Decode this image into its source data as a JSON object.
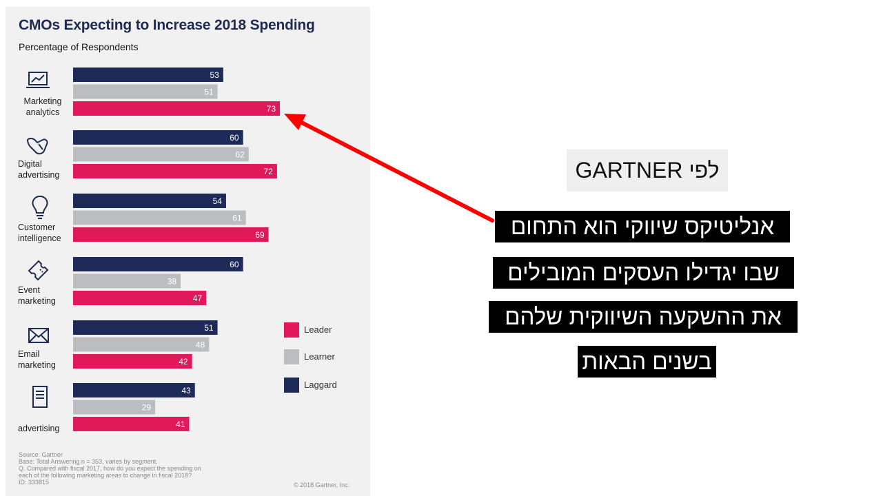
{
  "chart_data": {
    "type": "bar",
    "orientation": "horizontal",
    "title": "CMOs Expecting to Increase 2018 Spending",
    "subtitle": "Percentage of Respondents",
    "categories": [
      "Marketing analytics",
      "Digital advertising",
      "Customer intelligence",
      "Event marketing",
      "Email marketing",
      "advertising"
    ],
    "series": [
      {
        "name": "Laggard",
        "color": "#1e2a57",
        "values": [
          53,
          60,
          54,
          60,
          51,
          43
        ]
      },
      {
        "name": "Learner",
        "color": "#bcbdc0",
        "values": [
          51,
          62,
          61,
          38,
          48,
          29
        ]
      },
      {
        "name": "Leader",
        "color": "#e0195a",
        "values": [
          73,
          72,
          69,
          47,
          42,
          41
        ]
      }
    ],
    "legend": {
      "placement": "right",
      "items": [
        "Leader",
        "Learner",
        "Laggard"
      ]
    },
    "grid": false,
    "xlim": [
      0,
      100
    ]
  },
  "category_icons": [
    "chart-monitor-icon",
    "pointing-hand-icon",
    "lightbulb-icon",
    "ticket-icon",
    "envelope-icon",
    "document-icon"
  ],
  "source_notes": [
    "Source: Gartner",
    "Base: Total Answering n = 353, varies by segment.",
    "Q. Compared with fiscal 2017, how do you expect the spending on",
    "each of the following marketing areas to change in fiscal 2018?",
    "ID: 333815"
  ],
  "copyright": "© 2018 Gartner, Inc.",
  "annotation": {
    "header": "לפי GARTNER",
    "lines": [
      "אנליטיקס שיווקי הוא התחום",
      "שבו יגדילו העסקים המובילים",
      "את ההשקעה השיווקית שלהם",
      "בשנים הבאות"
    ],
    "arrow_color": "#ff0000"
  }
}
